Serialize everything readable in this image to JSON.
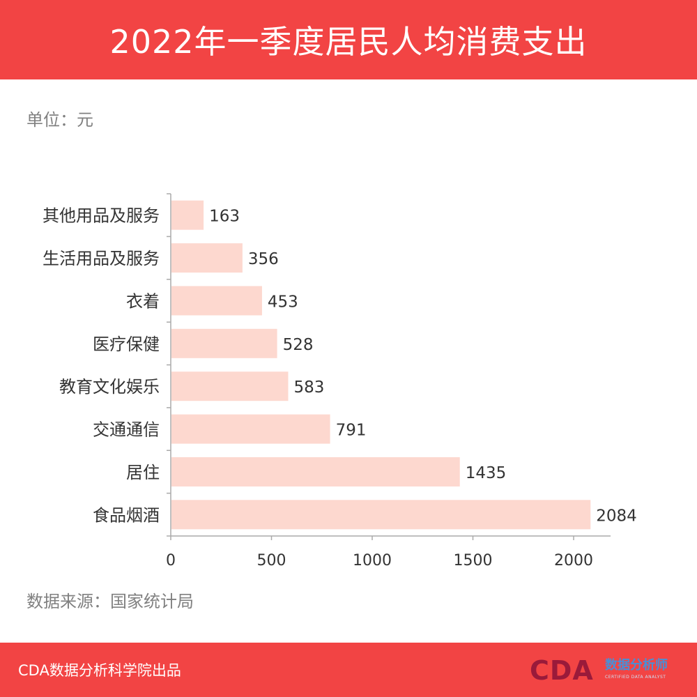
{
  "header": {
    "title": "2022年一季度居民人均消费支出"
  },
  "unit_label": "单位：元",
  "source_label": "数据来源：国家统计局",
  "footer": {
    "credit": "CDA数据分析科学院出品",
    "logo_mark": "CDA",
    "logo_cn": "数据分析师",
    "logo_en": "CERTIFIED DATA ANALYST"
  },
  "colors": {
    "header_bg": "#f24444",
    "bar": "#fdd8cf",
    "axis": "#aaaaaa",
    "muted_text": "#808080"
  },
  "chart_data": {
    "type": "bar",
    "orientation": "horizontal",
    "categories": [
      "其他用品及服务",
      "生活用品及服务",
      "衣着",
      "医疗保健",
      "教育文化娱乐",
      "交通通信",
      "居住",
      "食品烟酒"
    ],
    "values": [
      163,
      356,
      453,
      528,
      583,
      791,
      1435,
      2084
    ],
    "data_labels": [
      "163",
      "356",
      "453",
      "528",
      "583",
      "791",
      "1435",
      "2084"
    ],
    "x_ticks": [
      0,
      500,
      1000,
      1500,
      2000
    ],
    "x_tick_labels": [
      "0",
      "500",
      "1000",
      "1500",
      "2000"
    ],
    "xlim": [
      0,
      2184
    ],
    "grid": false,
    "legend": "none"
  }
}
